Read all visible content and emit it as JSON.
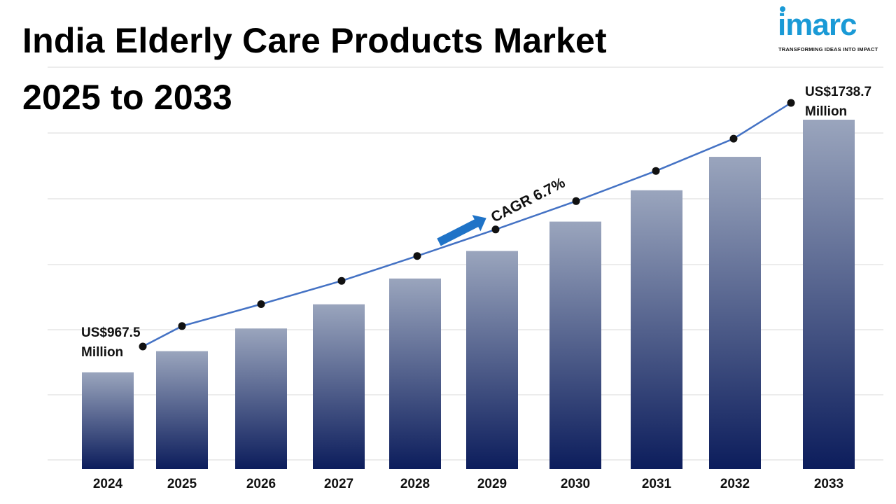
{
  "title": "India Elderly Care Products Market 2025 to 2033",
  "title_line1": "India Elderly Care Products Market",
  "title_line2": "2025 to 2033",
  "logo": {
    "word": "imarc",
    "tagline": "TRANSFORMING IDEAS INTO IMPACT"
  },
  "colors": {
    "bar_top": "#9aa5bd",
    "bar_bottom": "#0c1d5c",
    "line": "#4472c4",
    "marker": "#111111",
    "arrow": "#1f73c7",
    "grid": "#d9d9d9",
    "brand": "#1a9ad6"
  },
  "chart_data": {
    "type": "bar",
    "categories": [
      "2024",
      "2025",
      "2026",
      "2027",
      "2028",
      "2029",
      "2030",
      "2031",
      "2032",
      "2033"
    ],
    "series": [
      {
        "values": [
          967.5,
          1032.3,
          1101.5,
          1175.3,
          1254.0,
          1338.0,
          1427.7,
          1523.3,
          1625.4,
          1738.7
        ]
      }
    ],
    "trend_line": [
      967.5,
      1032.3,
      1101.5,
      1175.3,
      1254.0,
      1338.0,
      1427.7,
      1523.3,
      1625.4,
      1738.7
    ],
    "annotations": {
      "start_label_line1": "US$967.5",
      "start_label_line2": "Million",
      "end_label_line1": "US$1738.7",
      "end_label_line2": "Million",
      "cagr": "CAGR 6.7%"
    },
    "grid": true,
    "legend": "none"
  }
}
